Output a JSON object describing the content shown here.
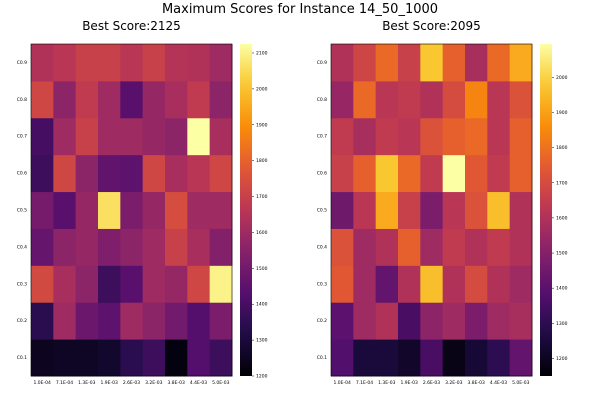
{
  "title": "Maximum Scores for Instance 14_50_1000",
  "chart_data": [
    {
      "type": "heatmap",
      "title": "Best Score:2125",
      "x_categories": [
        "1.0E-04",
        "7.1E-04",
        "1.3E-03",
        "1.9E-03",
        "2.6E-03",
        "3.2E-03",
        "3.8E-03",
        "4.4E-03",
        "5.0E-03"
      ],
      "y_categories": [
        "C0.1",
        "C0.2",
        "C0.3",
        "C0.4",
        "C0.5",
        "C0.6",
        "C0.7",
        "C0.8",
        "C0.9"
      ],
      "colorbar": {
        "min": 1200,
        "max": 2125,
        "ticks": [
          1200,
          1300,
          1400,
          1500,
          1600,
          1700,
          1800,
          1900,
          2000,
          2100
        ]
      },
      "colormap": "inferno",
      "values": [
        [
          1250,
          1340,
          1730,
          1470,
          1510,
          1380,
          1400,
          1720,
          1640
        ],
        [
          1260,
          1600,
          1620,
          1560,
          1440,
          1720,
          1600,
          1560,
          1660
        ],
        [
          1260,
          1480,
          1560,
          1580,
          1580,
          1560,
          1700,
          1680,
          1700
        ],
        [
          1270,
          1450,
          1380,
          1530,
          2060,
          1460,
          1600,
          1600,
          1700
        ],
        [
          1340,
          1600,
          1440,
          1560,
          1520,
          1450,
          1600,
          1440,
          1660
        ],
        [
          1380,
          1560,
          1600,
          1600,
          1580,
          1720,
          1580,
          1580,
          1700
        ],
        [
          1220,
          1500,
          1580,
          1700,
          1740,
          1620,
          1560,
          1620,
          1650
        ],
        [
          1430,
          1430,
          1720,
          1620,
          1600,
          1660,
          2125,
          1680,
          1640
        ],
        [
          1380,
          1520,
          2100,
          1540,
          1600,
          1720,
          1620,
          1560,
          1600
        ]
      ]
    },
    {
      "type": "heatmap",
      "title": "Best Score:2095",
      "x_categories": [
        "1.0E-04",
        "7.1E-04",
        "1.3E-03",
        "1.9E-03",
        "2.6E-03",
        "3.2E-03",
        "3.8E-03",
        "4.4E-03",
        "5.0E-03"
      ],
      "y_categories": [
        "C0.1",
        "C0.2",
        "C0.3",
        "C0.4",
        "C0.5",
        "C0.6",
        "C0.7",
        "C0.8",
        "C0.9"
      ],
      "colorbar": {
        "min": 1150,
        "max": 2095,
        "ticks": [
          1200,
          1300,
          1400,
          1500,
          1600,
          1700,
          1800,
          1900,
          2000
        ]
      },
      "colormap": "inferno",
      "values": [
        [
          1380,
          1400,
          1740,
          1720,
          1450,
          1660,
          1640,
          1540,
          1600
        ],
        [
          1250,
          1560,
          1560,
          1560,
          1620,
          1760,
          1580,
          1780,
          1680
        ],
        [
          1250,
          1600,
          1420,
          1600,
          1920,
          1980,
          1640,
          1620,
          1780
        ],
        [
          1220,
          1360,
          1600,
          1760,
          1660,
          1780,
          1620,
          1640,
          1660
        ],
        [
          1360,
          1520,
          1960,
          1560,
          1480,
          1640,
          1720,
          1600,
          1980
        ],
        [
          1180,
          1560,
          1600,
          1640,
          1620,
          2095,
          1760,
          1700,
          1760
        ],
        [
          1240,
          1480,
          1700,
          1600,
          1720,
          1740,
          1780,
          1840,
          1580
        ],
        [
          1300,
          1560,
          1600,
          1640,
          1960,
          1640,
          1620,
          1620,
          1780
        ],
        [
          1420,
          1580,
          1560,
          1600,
          1600,
          1760,
          1760,
          1720,
          1920
        ]
      ]
    }
  ]
}
